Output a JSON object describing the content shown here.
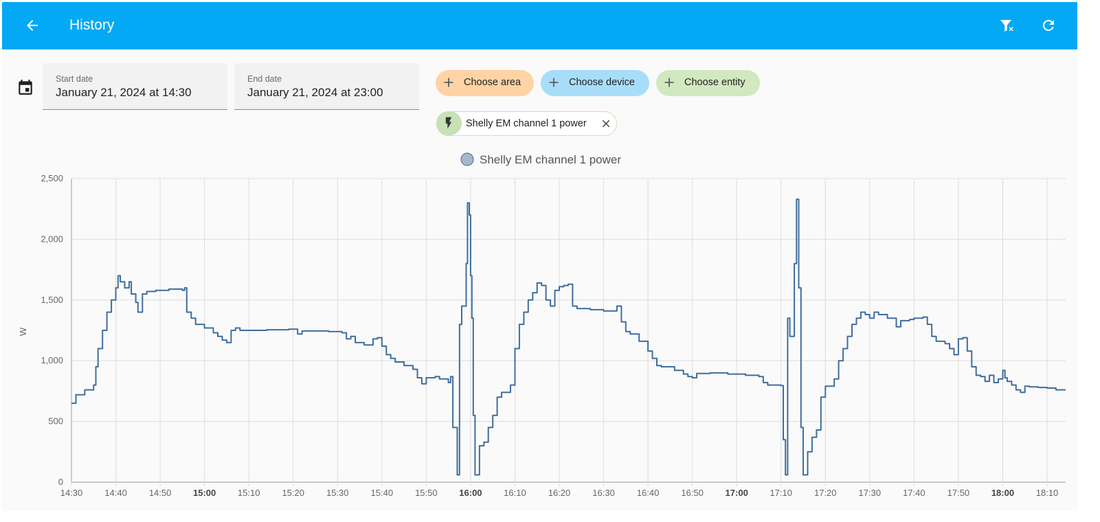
{
  "header": {
    "title": "History",
    "icons": [
      "back-arrow-icon",
      "filter-remove-icon",
      "refresh-icon"
    ],
    "color": "#03a9f4"
  },
  "date_picker": {
    "icon": "calendar-icon",
    "start": {
      "label": "Start date",
      "value": "January 21, 2024 at 14:30"
    },
    "end": {
      "label": "End date",
      "value": "January 21, 2024 at 23:00"
    }
  },
  "target_picker": {
    "area_label": "Choose area",
    "device_label": "Choose device",
    "entity_label": "Choose entity",
    "colors": {
      "area": "#ffd3a4",
      "device": "#a8ddfa",
      "entity": "#d2e8c0"
    },
    "selected_entity": {
      "name": "Shelly EM channel 1 power",
      "icon": "flash-icon"
    }
  },
  "chart_data": {
    "type": "line",
    "title": "",
    "legend": [
      "Shelly EM channel 1 power"
    ],
    "legend_placement": "top-center",
    "ylabel": "W",
    "xlabel": "",
    "ylim": [
      0,
      2500
    ],
    "y_ticks": [
      0,
      500,
      1000,
      1500,
      2000,
      2500
    ],
    "y_tick_labels": [
      "0",
      "500",
      "1,000",
      "1,500",
      "2,000",
      "2,500"
    ],
    "x_tick_labels": [
      "14:30",
      "14:40",
      "14:50",
      "15:00",
      "15:10",
      "15:20",
      "15:30",
      "15:40",
      "15:50",
      "16:00",
      "16:10",
      "16:20",
      "16:30",
      "16:40",
      "16:50",
      "17:00",
      "17:10",
      "17:20",
      "17:30",
      "17:40",
      "17:50",
      "18:00",
      "18:10"
    ],
    "bold_x_ticks": [
      "15:00",
      "16:00",
      "17:00",
      "18:00"
    ],
    "grid": true,
    "line_color": "#3e6d9c",
    "series": [
      {
        "name": "Shelly EM channel 1 power",
        "step": true,
        "points": [
          [
            "14:30",
            650
          ],
          [
            "14:31",
            720
          ],
          [
            "14:33",
            760
          ],
          [
            "14:35",
            800
          ],
          [
            "14:35.5",
            950
          ],
          [
            "14:36",
            1100
          ],
          [
            "14:37",
            1250
          ],
          [
            "14:38",
            1400
          ],
          [
            "14:39",
            1500
          ],
          [
            "14:40",
            1600
          ],
          [
            "14:40.5",
            1700
          ],
          [
            "14:41",
            1650
          ],
          [
            "14:42",
            1600
          ],
          [
            "14:43",
            1650
          ],
          [
            "14:43.5",
            1550
          ],
          [
            "14:44.5",
            1480
          ],
          [
            "14:45",
            1400
          ],
          [
            "14:46",
            1550
          ],
          [
            "14:47",
            1570
          ],
          [
            "14:49",
            1580
          ],
          [
            "14:52",
            1590
          ],
          [
            "14:55",
            1580
          ],
          [
            "14:55.5",
            1600
          ],
          [
            "14:56",
            1400
          ],
          [
            "14:57",
            1350
          ],
          [
            "14:58",
            1300
          ],
          [
            "15:00",
            1270
          ],
          [
            "15:02",
            1230
          ],
          [
            "15:03",
            1200
          ],
          [
            "15:04",
            1170
          ],
          [
            "15:05",
            1150
          ],
          [
            "15:06",
            1250
          ],
          [
            "15:07",
            1270
          ],
          [
            "15:08",
            1250
          ],
          [
            "15:14",
            1255
          ],
          [
            "15:19",
            1260
          ],
          [
            "15:21",
            1220
          ],
          [
            "15:22",
            1245
          ],
          [
            "15:28",
            1240
          ],
          [
            "15:31",
            1230
          ],
          [
            "15:32",
            1180
          ],
          [
            "15:33",
            1200
          ],
          [
            "15:34",
            1150
          ],
          [
            "15:36",
            1130
          ],
          [
            "15:38",
            1180
          ],
          [
            "15:39",
            1190
          ],
          [
            "15:40",
            1120
          ],
          [
            "15:41",
            1050
          ],
          [
            "15:42",
            1020
          ],
          [
            "15:43",
            990
          ],
          [
            "15:45",
            960
          ],
          [
            "15:47",
            930
          ],
          [
            "15:48",
            860
          ],
          [
            "15:49",
            810
          ],
          [
            "15:50",
            860
          ],
          [
            "15:52",
            870
          ],
          [
            "15:53",
            850
          ],
          [
            "15:55",
            820
          ],
          [
            "15:55.5",
            870
          ],
          [
            "15:56",
            450
          ],
          [
            "15:57",
            60
          ],
          [
            "15:57.5",
            1300
          ],
          [
            "15:58",
            1450
          ],
          [
            "15:59",
            1800
          ],
          [
            "15:59.3",
            2300
          ],
          [
            "15:59.7",
            2200
          ],
          [
            "16:00",
            1700
          ],
          [
            "16:00.3",
            1350
          ],
          [
            "16:00.6",
            550
          ],
          [
            "16:01",
            60
          ],
          [
            "16:02",
            300
          ],
          [
            "16:03",
            330
          ],
          [
            "16:04",
            450
          ],
          [
            "16:05",
            550
          ],
          [
            "16:06",
            700
          ],
          [
            "16:07",
            740
          ],
          [
            "16:09",
            800
          ],
          [
            "16:10",
            1100
          ],
          [
            "16:11",
            1300
          ],
          [
            "16:12",
            1400
          ],
          [
            "16:13",
            1500
          ],
          [
            "16:14",
            1560
          ],
          [
            "16:15",
            1640
          ],
          [
            "16:16",
            1620
          ],
          [
            "16:17",
            1500
          ],
          [
            "16:18",
            1450
          ],
          [
            "16:19",
            1580
          ],
          [
            "16:20",
            1610
          ],
          [
            "16:21",
            1620
          ],
          [
            "16:22",
            1630
          ],
          [
            "16:23",
            1450
          ],
          [
            "16:24",
            1430
          ],
          [
            "16:27",
            1420
          ],
          [
            "16:30",
            1410
          ],
          [
            "16:32",
            1410
          ],
          [
            "16:33",
            1450
          ],
          [
            "16:34",
            1320
          ],
          [
            "16:35",
            1240
          ],
          [
            "16:36",
            1220
          ],
          [
            "16:38",
            1160
          ],
          [
            "16:40",
            1080
          ],
          [
            "16:41",
            1020
          ],
          [
            "16:42",
            960
          ],
          [
            "16:43",
            950
          ],
          [
            "16:46",
            920
          ],
          [
            "16:48",
            890
          ],
          [
            "16:49",
            870
          ],
          [
            "16:50",
            860
          ],
          [
            "16:51",
            895
          ],
          [
            "16:54",
            900
          ],
          [
            "16:58",
            890
          ],
          [
            "17:02",
            880
          ],
          [
            "17:05",
            870
          ],
          [
            "17:06",
            820
          ],
          [
            "17:07",
            800
          ],
          [
            "17:10",
            795
          ],
          [
            "17:10.5",
            350
          ],
          [
            "17:11",
            60
          ],
          [
            "17:11.5",
            1350
          ],
          [
            "17:12",
            1200
          ],
          [
            "17:13",
            1800
          ],
          [
            "17:13.5",
            2330
          ],
          [
            "17:14",
            1600
          ],
          [
            "17:14.5",
            450
          ],
          [
            "17:15",
            60
          ],
          [
            "17:16",
            250
          ],
          [
            "17:17",
            370
          ],
          [
            "17:18",
            430
          ],
          [
            "17:19",
            700
          ],
          [
            "17:20",
            790
          ],
          [
            "17:22",
            850
          ],
          [
            "17:23",
            1000
          ],
          [
            "17:24",
            1100
          ],
          [
            "17:25",
            1200
          ],
          [
            "17:26",
            1300
          ],
          [
            "17:27",
            1350
          ],
          [
            "17:28",
            1400
          ],
          [
            "17:29",
            1380
          ],
          [
            "17:30",
            1350
          ],
          [
            "17:31",
            1400
          ],
          [
            "17:32",
            1380
          ],
          [
            "17:34",
            1350
          ],
          [
            "17:35",
            1350
          ],
          [
            "17:36",
            1280
          ],
          [
            "17:37",
            1330
          ],
          [
            "17:39",
            1340
          ],
          [
            "17:40",
            1350
          ],
          [
            "17:42",
            1360
          ],
          [
            "17:43",
            1300
          ],
          [
            "17:44",
            1200
          ],
          [
            "17:45",
            1160
          ],
          [
            "17:47",
            1140
          ],
          [
            "17:48",
            1100
          ],
          [
            "17:49",
            1050
          ],
          [
            "17:50",
            1180
          ],
          [
            "17:51",
            1190
          ],
          [
            "17:52",
            1080
          ],
          [
            "17:53",
            950
          ],
          [
            "17:54",
            880
          ],
          [
            "17:55",
            870
          ],
          [
            "17:56",
            830
          ],
          [
            "17:57",
            880
          ],
          [
            "17:58",
            820
          ],
          [
            "17:59",
            850
          ],
          [
            "18:00",
            920
          ],
          [
            "18:00.5",
            860
          ],
          [
            "18:01",
            830
          ],
          [
            "18:02",
            800
          ],
          [
            "18:03",
            760
          ],
          [
            "18:04",
            740
          ],
          [
            "18:05",
            790
          ],
          [
            "18:06",
            785
          ],
          [
            "18:08",
            780
          ],
          [
            "18:10",
            775
          ],
          [
            "18:12",
            760
          ]
        ]
      }
    ]
  }
}
